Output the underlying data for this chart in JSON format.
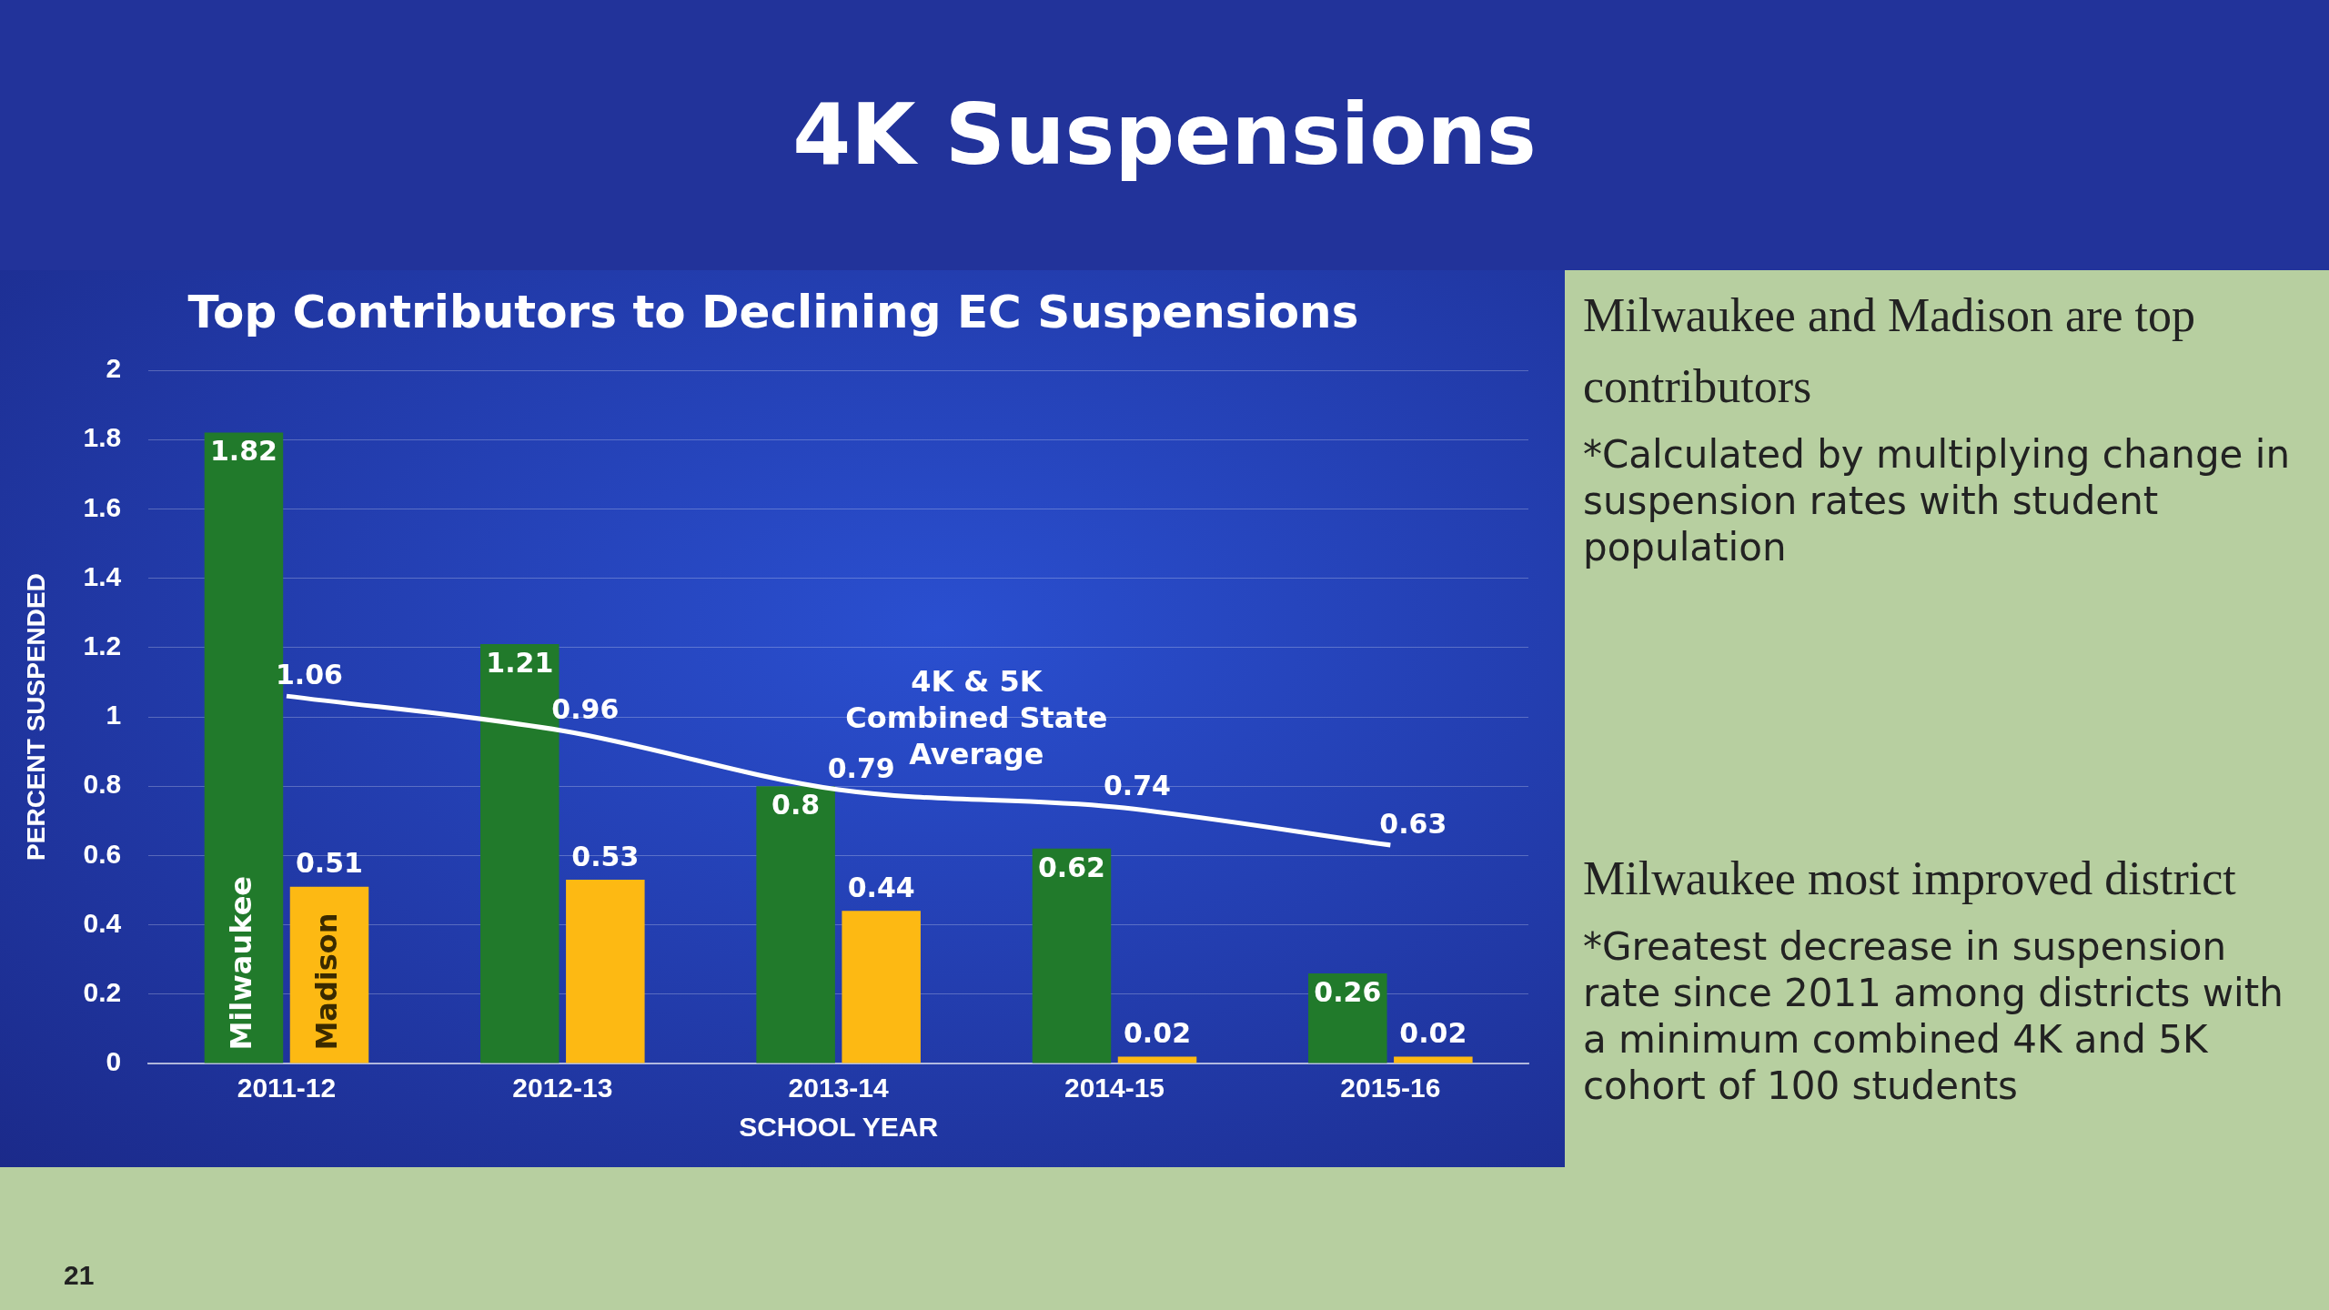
{
  "chart_data": {
    "type": "bar",
    "title": "4K Suspensions",
    "subtitle": "Top Contributors to Declining EC Suspensions",
    "xlabel": "SCHOOL YEAR",
    "ylabel": "PERCENT SUSPENDED",
    "categories": [
      "2011-12",
      "2012-13",
      "2013-14",
      "2014-15",
      "2015-16"
    ],
    "series": [
      {
        "name": "Milwaukee",
        "color": "#217a2b",
        "values": [
          1.82,
          1.21,
          0.8,
          0.62,
          0.26
        ]
      },
      {
        "name": "Madison",
        "color": "#fdb913",
        "values": [
          0.51,
          0.53,
          0.44,
          0.02,
          0.02
        ]
      },
      {
        "name": "4K & 5K Combined State Average",
        "type": "line",
        "color": "#ffffff",
        "values": [
          1.06,
          0.96,
          0.79,
          0.74,
          0.63
        ]
      }
    ],
    "ylim": [
      0,
      2
    ],
    "yticks": [
      0,
      0.2,
      0.4,
      0.6,
      0.8,
      1,
      1.2,
      1.4,
      1.6,
      1.8,
      2
    ],
    "grid": "y",
    "legend": false,
    "marker": "none",
    "data_labels": true,
    "annotations": [
      "Milwaukee and Madison are top contributors",
      "*Calculated by multiplying change in suspension rates with student population",
      "Milwaukee most improved district",
      "*Greatest decrease in suspension rate since 2011 among districts with a minimum combined 4K and 5K cohort of 100 students",
      "21"
    ]
  }
}
